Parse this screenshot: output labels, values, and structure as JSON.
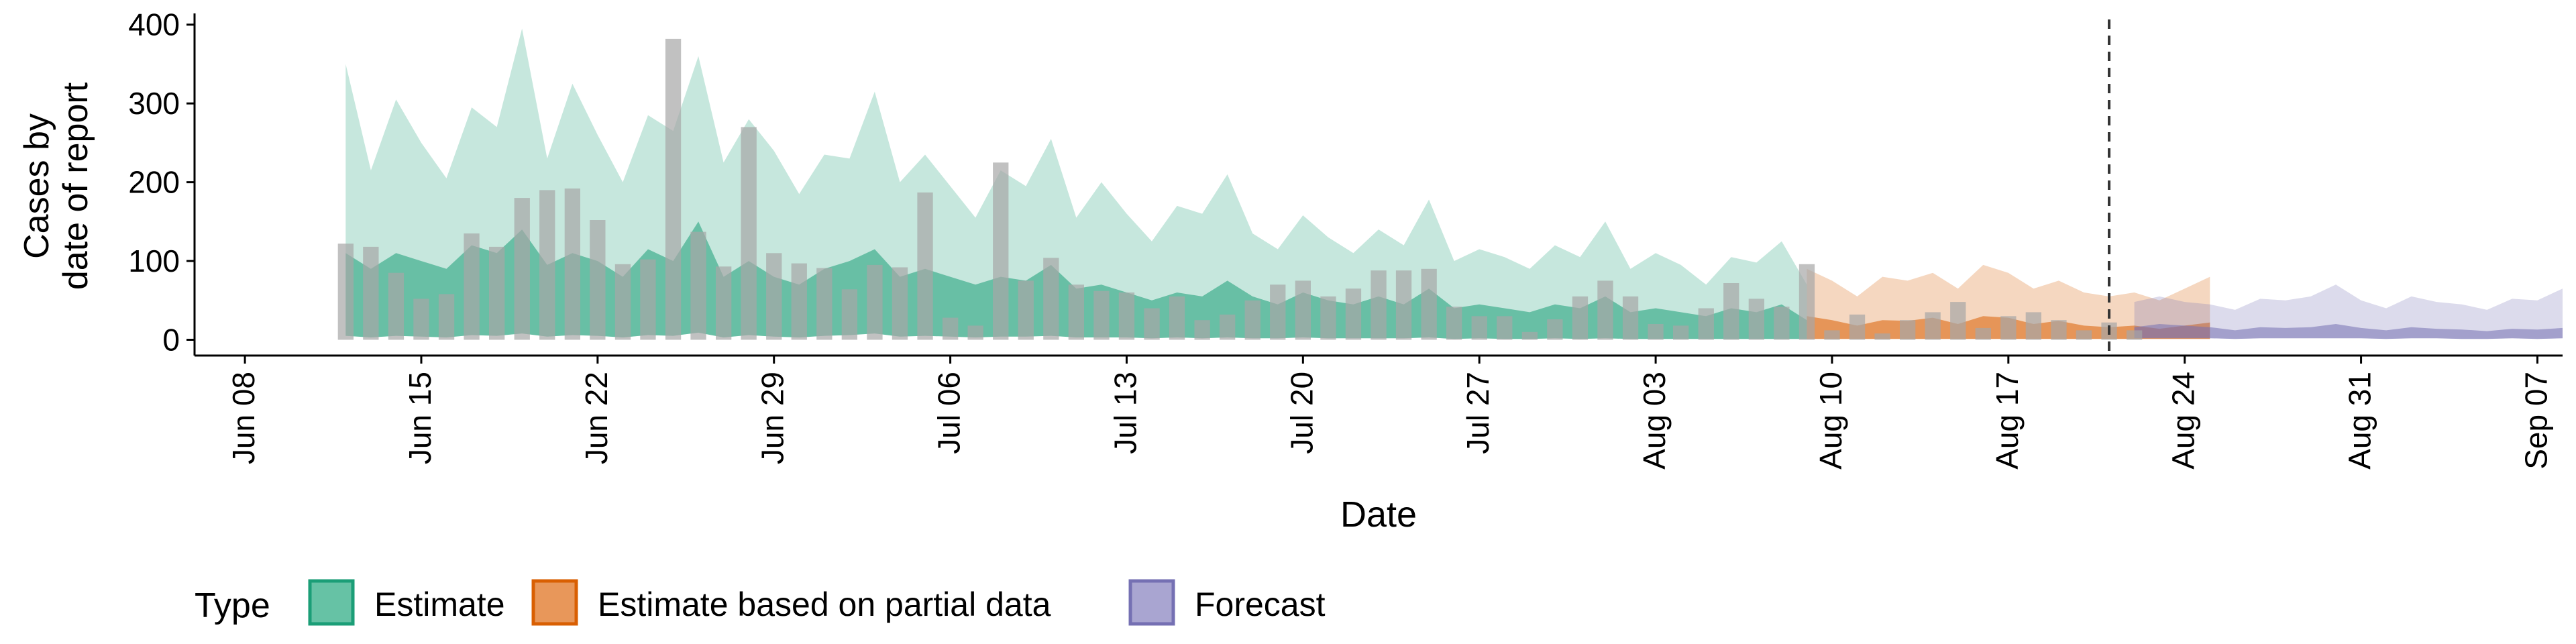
{
  "chart_data": {
    "type": "bar",
    "xlabel": "Date",
    "ylabel_lines": [
      "Cases by",
      "date of report"
    ],
    "ylim": [
      -20,
      410
    ],
    "yticks": [
      0,
      100,
      200,
      300,
      400
    ],
    "xlim": [
      "2020-06-06",
      "2020-09-08"
    ],
    "xticks": [
      "2020-06-08",
      "2020-06-15",
      "2020-06-22",
      "2020-06-29",
      "2020-07-06",
      "2020-07-13",
      "2020-07-20",
      "2020-07-27",
      "2020-08-03",
      "2020-08-10",
      "2020-08-17",
      "2020-08-24",
      "2020-08-31",
      "2020-09-07"
    ],
    "xtick_labels": [
      "Jun 08",
      "Jun 15",
      "Jun 22",
      "Jun 29",
      "Jul 06",
      "Jul 13",
      "Jul 20",
      "Jul 27",
      "Aug 03",
      "Aug 10",
      "Aug 17",
      "Aug 24",
      "Aug 31",
      "Sep 07"
    ],
    "forecast_date": "2020-08-21",
    "legend": {
      "title": "Type",
      "position": "bottom",
      "items": [
        {
          "label": "Estimate",
          "fill": "#66c2a5",
          "stroke": "#1b9e77"
        },
        {
          "label": "Estimate based on partial data",
          "fill": "#e8975a",
          "stroke": "#d95f02"
        },
        {
          "label": "Forecast",
          "fill": "#a9a5d1",
          "stroke": "#7570b3"
        }
      ]
    },
    "colors": {
      "estimate": "#1b9e77",
      "partial": "#d95f02",
      "forecast": "#7570b3",
      "reported_bars": "#a6a6a6",
      "forecast_line": "#333333"
    },
    "reported_cases": {
      "start_date": "2020-06-12",
      "values": [
        122,
        118,
        85,
        52,
        58,
        135,
        118,
        180,
        190,
        192,
        152,
        96,
        102,
        382,
        137,
        93,
        270,
        110,
        97,
        91,
        64,
        95,
        92,
        187,
        28,
        18,
        225,
        75,
        104,
        70,
        62,
        60,
        40,
        55,
        25,
        32,
        50,
        70,
        75,
        55,
        65,
        88,
        88,
        90,
        42,
        30,
        30,
        10,
        26,
        55,
        75,
        55,
        20,
        18,
        40,
        72,
        52,
        42,
        96,
        12,
        32,
        8,
        25,
        35,
        48,
        15,
        30,
        35,
        25,
        12,
        22,
        12
      ]
    },
    "series": [
      {
        "name": "Estimate",
        "start_date": "2020-06-12",
        "upper": [
          350,
          215,
          305,
          250,
          205,
          295,
          270,
          395,
          230,
          325,
          260,
          200,
          285,
          265,
          360,
          225,
          280,
          240,
          185,
          235,
          230,
          315,
          200,
          235,
          195,
          155,
          215,
          195,
          255,
          155,
          200,
          160,
          125,
          170,
          160,
          210,
          135,
          115,
          158,
          130,
          110,
          140,
          120,
          178,
          100,
          115,
          105,
          90,
          120,
          105,
          150,
          90,
          110,
          95,
          70,
          105,
          98,
          125,
          70
        ],
        "median": [
          110,
          90,
          110,
          100,
          90,
          120,
          110,
          140,
          95,
          110,
          100,
          80,
          115,
          100,
          150,
          80,
          100,
          80,
          70,
          90,
          100,
          115,
          80,
          90,
          80,
          70,
          80,
          75,
          95,
          65,
          70,
          60,
          50,
          60,
          55,
          75,
          55,
          45,
          60,
          50,
          45,
          55,
          45,
          65,
          40,
          45,
          40,
          35,
          45,
          40,
          55,
          35,
          40,
          35,
          30,
          40,
          35,
          45,
          25
        ],
        "lower": [
          5,
          3,
          5,
          4,
          3,
          6,
          5,
          8,
          4,
          6,
          5,
          3,
          6,
          5,
          9,
          3,
          6,
          4,
          3,
          5,
          6,
          8,
          4,
          5,
          4,
          3,
          4,
          4,
          5,
          3,
          3,
          3,
          2,
          3,
          2,
          3,
          2,
          2,
          3,
          2,
          2,
          2,
          2,
          3,
          1,
          2,
          1,
          1,
          2,
          1,
          2,
          1,
          1,
          1,
          1,
          1,
          1,
          1,
          1
        ]
      },
      {
        "name": "Estimate based on partial data",
        "start_date": "2020-08-09",
        "upper": [
          90,
          75,
          55,
          80,
          75,
          85,
          65,
          95,
          85,
          65,
          75,
          60,
          55,
          60,
          50,
          65,
          80
        ],
        "median": [
          30,
          25,
          18,
          25,
          24,
          28,
          20,
          30,
          28,
          20,
          24,
          18,
          16,
          18,
          14,
          18,
          22
        ],
        "lower": [
          1,
          1,
          1,
          1,
          1,
          1,
          1,
          1,
          1,
          1,
          1,
          1,
          1,
          1,
          1,
          1,
          1
        ]
      },
      {
        "name": "Forecast",
        "start_date": "2020-08-22",
        "upper": [
          48,
          55,
          48,
          45,
          38,
          52,
          50,
          55,
          70,
          50,
          40,
          55,
          48,
          45,
          38,
          52,
          50,
          65
        ],
        "median": [
          16,
          20,
          18,
          16,
          12,
          16,
          15,
          16,
          20,
          15,
          12,
          16,
          14,
          13,
          11,
          14,
          13,
          15
        ],
        "lower": [
          2,
          2,
          2,
          2,
          1,
          2,
          2,
          2,
          2,
          2,
          1,
          2,
          2,
          1,
          1,
          2,
          1,
          2
        ]
      }
    ]
  }
}
